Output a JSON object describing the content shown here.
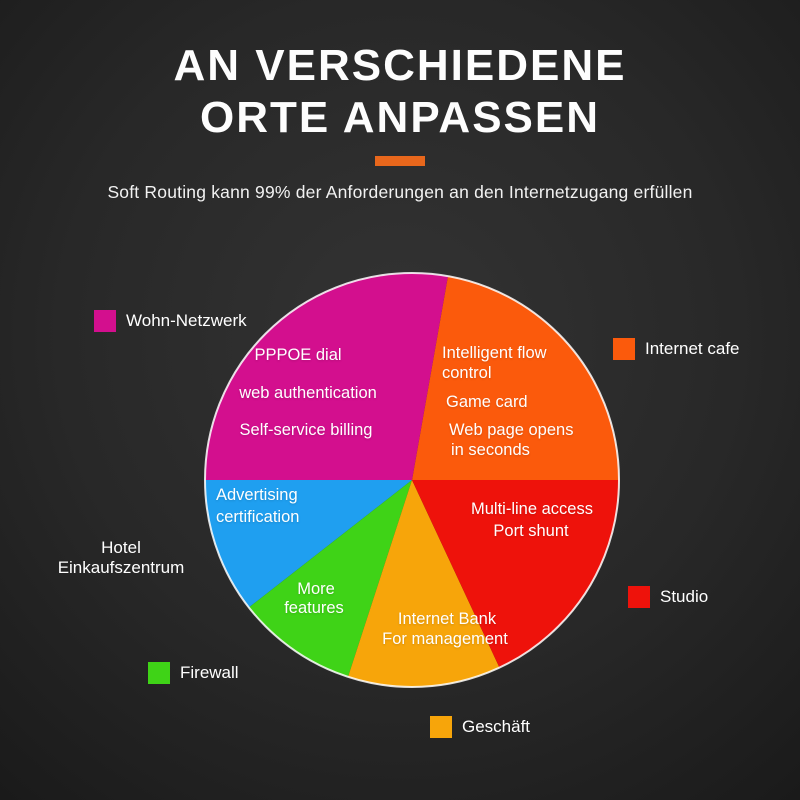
{
  "header": {
    "title_line1": "AN VERSCHIEDENE",
    "title_line2": "ORTE ANPASSEN",
    "subtitle": "Soft Routing kann 99% der Anforderungen an den Internetzugang erfüllen",
    "accent_color": "#e8671c"
  },
  "chart_data": {
    "type": "pie",
    "legend_position": "around",
    "slices": [
      {
        "id": "internet-cafe",
        "legend": "Internet cafe",
        "color": "#fb5a0c",
        "start_angle": 0,
        "end_angle": 80,
        "percent": 22.2,
        "lines": [
          "Intelligent flow",
          "control",
          "Game card",
          "Web page opens",
          "in seconds"
        ]
      },
      {
        "id": "wohn-netzwerk",
        "legend": "Wohn-Netzwerk",
        "color": "#d30f8e",
        "start_angle": 80,
        "end_angle": 180,
        "percent": 27.8,
        "lines": [
          "PPPOE dial",
          "web authentication",
          "Self-service billing"
        ]
      },
      {
        "id": "hotel-einkaufszentrum",
        "legend": "Hotel\nEinkaufszentrum",
        "color": "#1f9ff0",
        "start_angle": 180,
        "end_angle": 218,
        "percent": 10.6,
        "lines": [
          "Advertising",
          "certification"
        ]
      },
      {
        "id": "firewall",
        "legend": "Firewall",
        "color": "#3fd317",
        "start_angle": 218,
        "end_angle": 252,
        "percent": 9.4,
        "lines": [
          "More",
          "features"
        ]
      },
      {
        "id": "geschaeft",
        "legend": "Geschäft",
        "color": "#f7a50a",
        "start_angle": 252,
        "end_angle": 295,
        "percent": 11.9,
        "lines": [
          "Internet Bank",
          "For management"
        ]
      },
      {
        "id": "studio",
        "legend": "Studio",
        "color": "#ee120b",
        "start_angle": 295,
        "end_angle": 360,
        "percent": 18.1,
        "lines": [
          "Multi-line access",
          "Port shunt"
        ]
      }
    ]
  }
}
